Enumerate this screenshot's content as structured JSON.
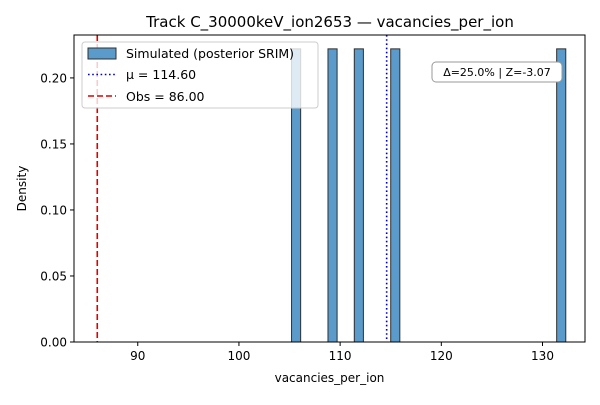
{
  "chart_data": {
    "type": "bar",
    "title": "Track C_30000keV_ion2653 — vacancies_per_ion",
    "xlabel": "vacancies_per_ion",
    "ylabel": "Density",
    "xlim": [
      83.7,
      134.2
    ],
    "ylim": [
      0,
      0.2325
    ],
    "xticks": [
      90,
      100,
      110,
      120,
      130
    ],
    "yticks": [
      0.0,
      0.05,
      0.1,
      0.15,
      0.2
    ],
    "xtick_labels": [
      "90",
      "100",
      "110",
      "120",
      "130"
    ],
    "ytick_labels": [
      "0.00",
      "0.05",
      "0.10",
      "0.15",
      "0.20"
    ],
    "series": [
      {
        "name": "Simulated (posterior SRIM)",
        "color": "#5b9bcb",
        "edge_color": "#2f2f2f",
        "bins": [
          {
            "x0": 105.2,
            "x1": 106.1,
            "density": 0.222
          },
          {
            "x0": 108.8,
            "x1": 109.7,
            "density": 0.222
          },
          {
            "x0": 111.4,
            "x1": 112.3,
            "density": 0.222
          },
          {
            "x0": 115.0,
            "x1": 115.9,
            "density": 0.222
          },
          {
            "x0": 131.4,
            "x1": 132.3,
            "density": 0.222
          }
        ]
      }
    ],
    "reference_lines": [
      {
        "name": "μ = 114.60",
        "value": 114.6,
        "color": "#0000cc",
        "style": "dotted"
      },
      {
        "name": "Obs = 86.00",
        "value": 86.0,
        "color": "#dd0000",
        "style": "dashed"
      }
    ],
    "legend_placement": "top-left",
    "annotation": "Δ=25.0% | Z=-3.07",
    "annotation_placement": "top-right",
    "grid": false
  }
}
